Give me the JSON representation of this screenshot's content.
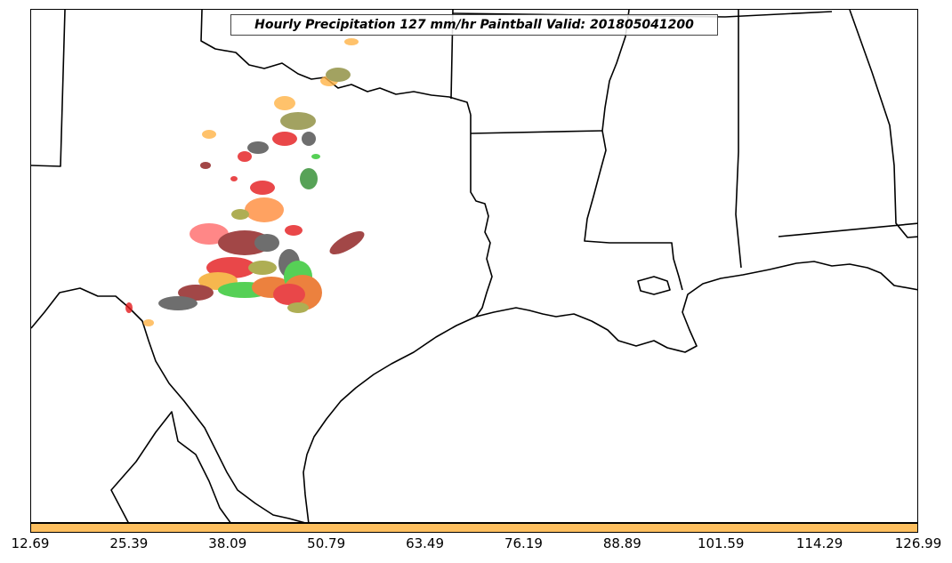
{
  "title": "Hourly Precipitation 127 mm/hr Paintball Valid: 201805041200",
  "colorbar": {
    "color": "#fdbf5f",
    "ticks": [
      "12.69",
      "25.39",
      "38.09",
      "50.79",
      "63.49",
      "76.19",
      "88.89",
      "101.59",
      "114.29",
      "126.99"
    ]
  },
  "map": {
    "region": "Texas, Oklahoma, Louisiana, Arkansas, Mississippi, Alabama and Gulf Coast",
    "borders_color": "#000000",
    "paintball_colors": [
      "#ff6a6a",
      "#e41a1c",
      "#8b1a1a",
      "#4b4b4b",
      "#ff8c3a",
      "#e8620e",
      "#f5a623",
      "#9a9a2a",
      "#8b8b3a",
      "#2cc52c",
      "#2e8b2e",
      "#ffb347"
    ]
  }
}
